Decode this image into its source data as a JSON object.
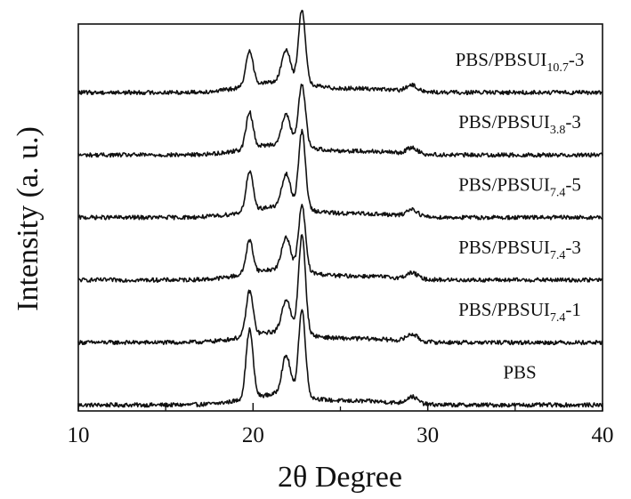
{
  "chart_data": {
    "type": "line",
    "xlabel": "2θ Degree",
    "ylabel": "Intensity (a. u.)",
    "xlim": [
      10,
      40
    ],
    "x_ticks": [
      10,
      20,
      30,
      40
    ],
    "x_tick_labels": [
      "10",
      "20",
      "30",
      "40"
    ],
    "y_ticks_shown": false,
    "grid": false,
    "legend": "none",
    "ylim": [
      0,
      6.5
    ],
    "peaks": [
      {
        "center": 19.8,
        "width": 0.28
      },
      {
        "center": 21.9,
        "width": 0.35
      },
      {
        "center": 22.8,
        "width": 0.28
      },
      {
        "center": 29.1,
        "width": 0.45
      }
    ],
    "series": [
      {
        "name": "PBS",
        "label_main": "PBS",
        "label_sub": "",
        "label_suffix": "",
        "offset": 0.1,
        "peak_heights": [
          1.15,
          0.65,
          1.45,
          0.12
        ]
      },
      {
        "name": "PBS/PBSUI7.4-1",
        "label_main": "PBS/PBSUI",
        "label_sub": "7.4",
        "label_suffix": "-1",
        "offset": 1.15,
        "peak_heights": [
          0.75,
          0.55,
          1.65,
          0.12
        ]
      },
      {
        "name": "PBS/PBSUI7.4-3",
        "label_main": "PBS/PBSUI",
        "label_sub": "7.4",
        "label_suffix": "-3",
        "offset": 2.2,
        "peak_heights": [
          0.55,
          0.55,
          1.1,
          0.1
        ]
      },
      {
        "name": "PBS/PBSUI7.4-5",
        "label_main": "PBS/PBSUI",
        "label_sub": "7.4",
        "label_suffix": "-5",
        "offset": 3.25,
        "peak_heights": [
          0.65,
          0.55,
          1.3,
          0.12
        ]
      },
      {
        "name": "PBS/PBSUI3.8-3",
        "label_main": "PBS/PBSUI",
        "label_sub": "3.8",
        "label_suffix": "-3",
        "offset": 4.3,
        "peak_heights": [
          0.6,
          0.5,
          1.05,
          0.1
        ]
      },
      {
        "name": "PBS/PBSUI10.7-3",
        "label_main": "PBS/PBSUI",
        "label_sub": "10.7",
        "label_suffix": "-3",
        "offset": 5.35,
        "peak_heights": [
          0.6,
          0.55,
          1.25,
          0.1
        ]
      }
    ],
    "line_color": "#111111"
  }
}
